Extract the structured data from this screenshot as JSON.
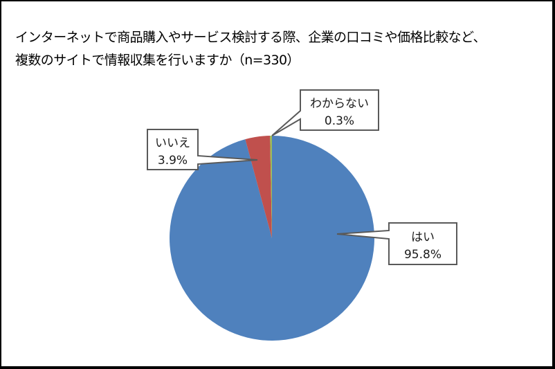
{
  "title": {
    "line1": "インターネットで商品購入やサービス検討する際、企業の口コミや価格比較など、",
    "line2": "複数のサイトで情報収集を行いますか（n=330）"
  },
  "colors": {
    "yes": "#4F81BD",
    "no": "#C0504D",
    "unknown": "#9BBB59",
    "callout_border": "#595959",
    "frame": "#000000"
  },
  "labels": {
    "yes": {
      "name": "はい",
      "value": "95.8%"
    },
    "no": {
      "name": "いいえ",
      "value": "3.9%"
    },
    "unknown": {
      "name": "わからない",
      "value": "0.3%"
    }
  },
  "chart_data": {
    "type": "pie",
    "title": "インターネットで商品購入やサービス検討する際、企業の口コミや価格比較など、複数のサイトで情報収集を行いますか（n=330）",
    "categories": [
      "はい",
      "いいえ",
      "わからない"
    ],
    "values": [
      95.8,
      3.9,
      0.3
    ],
    "unit": "%",
    "n": 330,
    "start_angle": "12 o'clock",
    "direction": "clockwise",
    "legend": "none (data callouts with category name and percentage)"
  }
}
